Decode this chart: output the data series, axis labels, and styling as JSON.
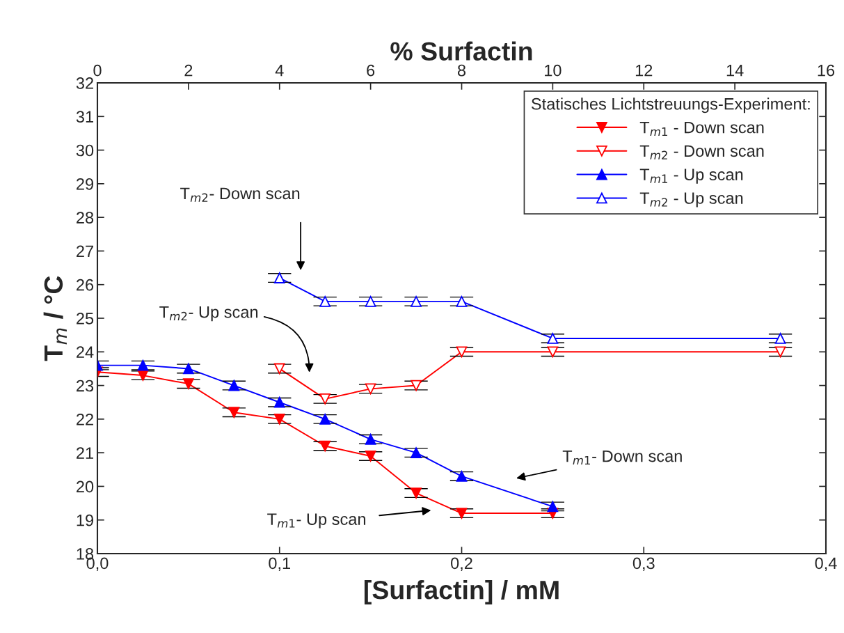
{
  "chart_data": {
    "type": "line",
    "xlabel": "[Surfactin] / mM",
    "ylabel": "T$_{m}$ / °C",
    "x2label": "% Surfactin",
    "legend_title": "Statisches Lichtstreuungs-Experiment:",
    "legend": "top right",
    "grid": false,
    "xlim": [
      0,
      0.4
    ],
    "xticks": [
      {
        "value": 0,
        "label": "0,0"
      },
      {
        "value": 0.1,
        "label": "0,1"
      },
      {
        "value": 0.2,
        "label": "0,2"
      },
      {
        "value": 0.3,
        "label": "0,3"
      },
      {
        "value": 0.4,
        "label": "0,4"
      }
    ],
    "x2lim": [
      0,
      16
    ],
    "x2ticks": [
      0,
      2,
      4,
      6,
      8,
      10,
      12,
      14,
      16
    ],
    "ylim": [
      18,
      32
    ],
    "yticks": [
      18,
      19,
      20,
      21,
      22,
      23,
      24,
      25,
      26,
      27,
      28,
      29,
      30,
      31,
      32
    ],
    "series": [
      {
        "name": "T$_{m1}$ - Down scan",
        "color": "#ff0000",
        "marker": "triangle_down",
        "x": [
          0,
          0.025,
          0.05,
          0.075,
          0.1,
          0.125,
          0.15,
          0.175,
          0.2,
          0.25
        ],
        "values": [
          23.4,
          23.3,
          23.05,
          22.2,
          22.0,
          21.2,
          20.9,
          19.8,
          19.2,
          19.2
        ],
        "errors": [
          0.13,
          0.13,
          0.13,
          0.13,
          0.13,
          0.13,
          0.13,
          0.13,
          0.13,
          0.13
        ]
      },
      {
        "name": "T$_{m2}$ - Down scan",
        "color": "#ff0000",
        "marker": "triangle_down_open",
        "x": [
          0.1,
          0.125,
          0.15,
          0.175,
          0.2,
          0.25,
          0.375
        ],
        "values": [
          23.5,
          22.6,
          22.9,
          23.0,
          24.0,
          24.0,
          24.0
        ],
        "errors": [
          0.13,
          0.13,
          0.13,
          0.13,
          0.13,
          0.13,
          0.13
        ]
      },
      {
        "name": "T$_{m1}$ - Up scan",
        "color": "#0000ff",
        "marker": "triangle",
        "x": [
          0,
          0.025,
          0.05,
          0.075,
          0.1,
          0.125,
          0.15,
          0.175,
          0.2,
          0.25
        ],
        "values": [
          23.6,
          23.6,
          23.5,
          23.0,
          22.5,
          22.0,
          21.4,
          21.0,
          20.3,
          19.4
        ],
        "errors": [
          0.13,
          0.13,
          0.13,
          0.13,
          0.13,
          0.13,
          0.13,
          0.13,
          0.13,
          0.13
        ]
      },
      {
        "name": "T$_{m2}$ - Up scan",
        "color": "#0000ff",
        "marker": "triangle_open",
        "x": [
          0.1,
          0.125,
          0.15,
          0.175,
          0.2,
          0.25,
          0.375
        ],
        "values": [
          26.2,
          25.5,
          25.5,
          25.5,
          25.5,
          24.4,
          24.4
        ],
        "errors": [
          0.13,
          0.13,
          0.13,
          0.13,
          0.13,
          0.13,
          0.13
        ]
      }
    ],
    "annotations": [
      "T$_{m2}$- Down scan",
      "T$_{m2}$- Up scan",
      "T$_{m1}$- Down scan",
      "T$_{m1}$- Up scan"
    ]
  }
}
